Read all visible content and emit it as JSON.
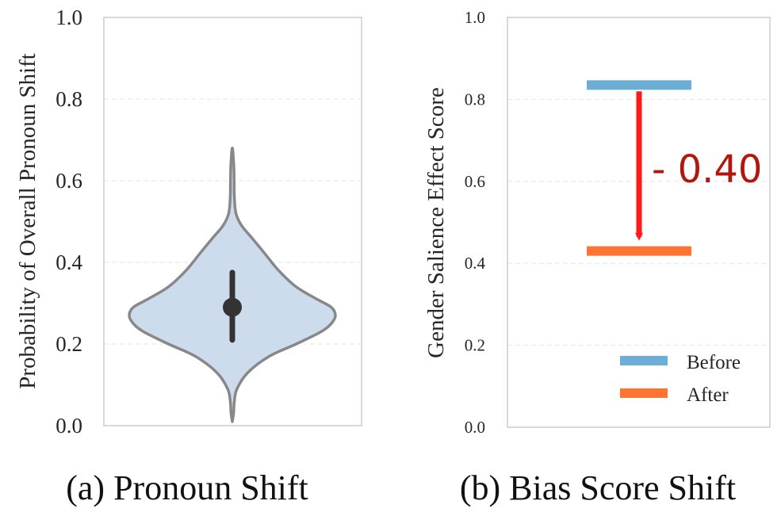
{
  "chart_data": [
    {
      "type": "violin",
      "title": "",
      "caption": "(a) Pronoun Shift",
      "xlabel": "",
      "ylabel": "Probability of Overall Pronoun Shift",
      "ylim": [
        0.0,
        1.0
      ],
      "yticks": [
        "0.0",
        "0.2",
        "0.4",
        "0.6",
        "0.8",
        "1.0"
      ],
      "grid": true,
      "distribution": {
        "min": 0.01,
        "max": 0.68,
        "median": 0.29,
        "q1": 0.21,
        "q3": 0.375,
        "mode": 0.275,
        "density_profile": [
          {
            "y": 0.01,
            "w": 0.0
          },
          {
            "y": 0.03,
            "w": 0.012
          },
          {
            "y": 0.06,
            "w": 0.02
          },
          {
            "y": 0.09,
            "w": 0.045
          },
          {
            "y": 0.13,
            "w": 0.15
          },
          {
            "y": 0.17,
            "w": 0.36
          },
          {
            "y": 0.2,
            "w": 0.62
          },
          {
            "y": 0.23,
            "w": 0.86
          },
          {
            "y": 0.25,
            "w": 0.96
          },
          {
            "y": 0.27,
            "w": 1.0
          },
          {
            "y": 0.29,
            "w": 0.96
          },
          {
            "y": 0.31,
            "w": 0.82
          },
          {
            "y": 0.34,
            "w": 0.62
          },
          {
            "y": 0.38,
            "w": 0.45
          },
          {
            "y": 0.42,
            "w": 0.32
          },
          {
            "y": 0.46,
            "w": 0.19
          },
          {
            "y": 0.49,
            "w": 0.09
          },
          {
            "y": 0.52,
            "w": 0.035
          },
          {
            "y": 0.56,
            "w": 0.02
          },
          {
            "y": 0.6,
            "w": 0.018
          },
          {
            "y": 0.64,
            "w": 0.014
          },
          {
            "y": 0.68,
            "w": 0.0
          }
        ]
      },
      "colors": {
        "fill": "#cddcec",
        "edge": "#888888",
        "box": "#333333"
      }
    },
    {
      "type": "bar",
      "title": "",
      "caption": "(b) Bias Score Shift",
      "xlabel": "",
      "ylabel": "Gender Salience Effect Score",
      "ylim": [
        0.0,
        1.0
      ],
      "yticks": [
        "0.0",
        "0.2",
        "0.4",
        "0.6",
        "0.8",
        "1.0"
      ],
      "grid": true,
      "series": [
        {
          "name": "Before",
          "value": 0.835,
          "color": "#6baed6"
        },
        {
          "name": "After",
          "value": 0.43,
          "color": "#fd7433"
        }
      ],
      "annotation": {
        "text": "- 0.40",
        "from": 0.835,
        "to": 0.43,
        "arrow_color": "#ff1a1a",
        "text_color": "#b3160c"
      },
      "legend": {
        "placement": "bottom-right",
        "entries": [
          "Before",
          "After"
        ]
      }
    }
  ]
}
